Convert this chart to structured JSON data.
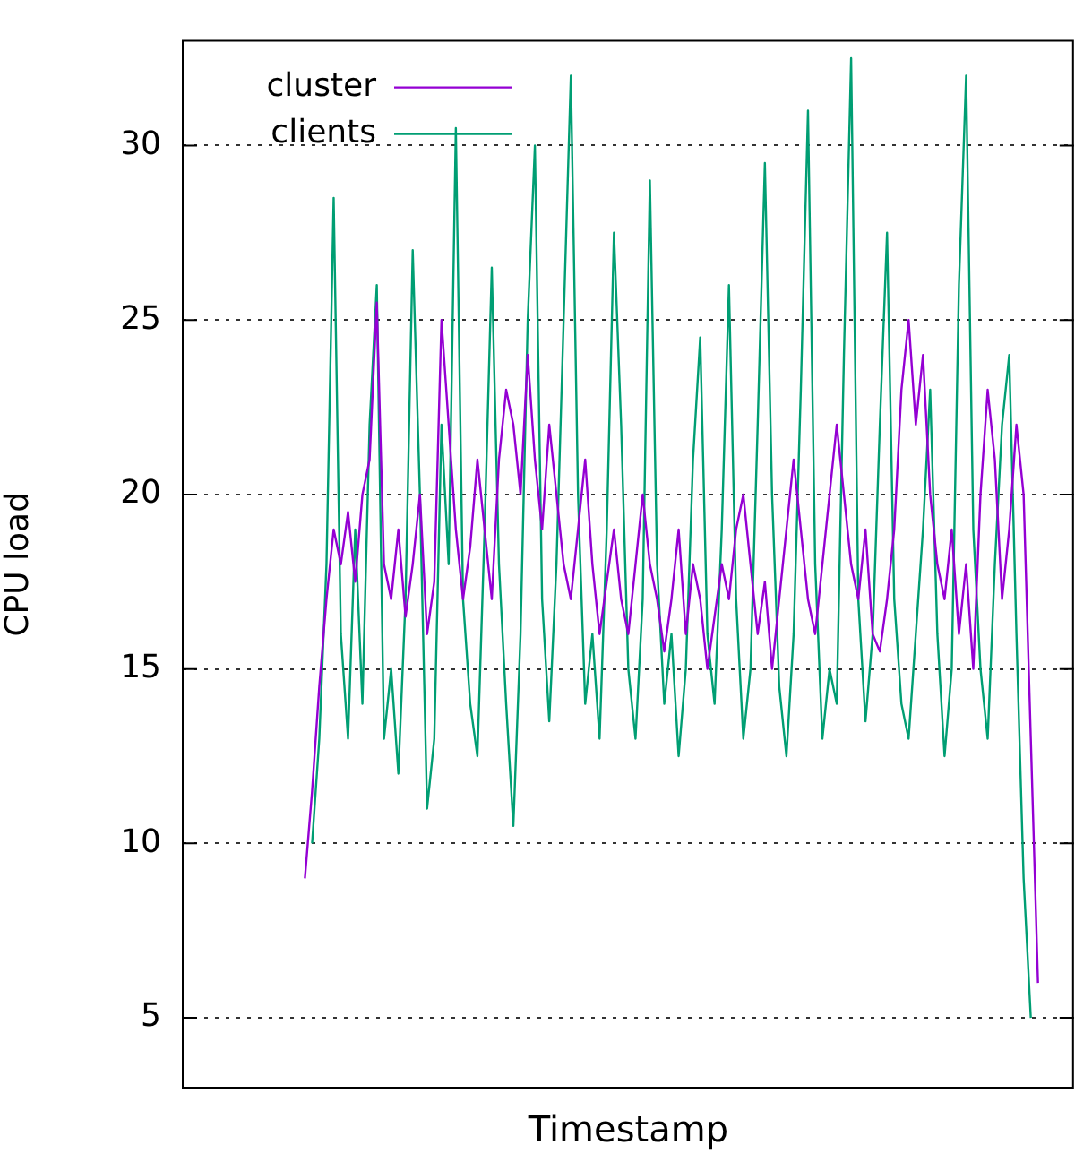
{
  "chart_data": {
    "type": "line",
    "xlabel": "Timestamp",
    "ylabel": "CPU load",
    "categories": [
      null,
      null,
      null,
      null,
      null,
      null,
      null,
      null,
      null,
      null,
      null,
      null,
      null,
      null,
      null,
      null,
      null,
      null,
      null,
      null,
      null,
      null,
      null,
      null,
      null,
      null,
      null,
      null,
      null,
      null,
      null,
      null,
      null,
      null,
      null,
      null,
      null,
      null,
      null,
      null,
      null,
      null,
      null,
      null,
      null,
      null,
      null,
      null,
      null,
      null,
      null,
      null,
      null,
      null,
      null,
      null,
      null,
      null,
      null,
      null,
      null,
      null,
      null,
      null,
      null,
      null,
      null,
      null,
      null,
      null,
      null,
      null,
      null,
      null,
      null,
      null,
      null,
      null,
      null,
      null,
      null,
      null,
      null,
      null,
      null,
      null,
      null,
      null,
      null,
      null,
      null,
      null,
      null,
      null,
      null,
      null,
      null,
      null,
      null,
      null,
      null,
      null,
      null,
      null,
      null,
      null,
      null,
      null,
      null,
      null,
      null,
      null,
      null,
      null,
      null,
      null,
      null,
      null,
      null,
      null,
      null,
      null,
      null,
      null,
      null
    ],
    "series": [
      {
        "name": "cluster",
        "color": "#9400d3",
        "values": [
          null,
          null,
          null,
          null,
          null,
          null,
          null,
          null,
          null,
          null,
          null,
          null,
          null,
          null,
          null,
          null,
          null,
          9,
          11.5,
          14.5,
          17,
          19,
          18,
          19.5,
          17.5,
          20,
          21,
          25.5,
          18,
          17,
          19,
          16.5,
          18,
          20,
          16,
          17.5,
          25,
          22,
          19,
          17,
          18.5,
          21,
          19,
          17,
          21,
          23,
          22,
          20,
          24,
          21,
          19,
          22,
          20,
          18,
          17,
          19,
          21,
          18,
          16,
          17.5,
          19,
          17,
          16,
          18,
          20,
          18,
          17,
          15.5,
          17,
          19,
          16,
          18,
          17,
          15,
          16.5,
          18,
          17,
          19,
          20,
          18,
          16,
          17.5,
          15,
          17,
          19,
          21,
          19,
          17,
          16,
          18,
          20,
          22,
          20,
          18,
          17,
          19,
          16,
          15.5,
          17,
          19,
          23,
          25,
          22,
          24,
          20,
          18,
          17,
          19,
          16,
          18,
          15,
          20,
          23,
          21,
          17,
          19,
          22,
          20,
          13,
          6,
          null,
          null,
          null,
          null,
          null
        ]
      },
      {
        "name": "clients",
        "color": "#009e73",
        "values": [
          null,
          null,
          null,
          null,
          null,
          null,
          null,
          null,
          null,
          null,
          null,
          null,
          null,
          null,
          null,
          null,
          null,
          null,
          10,
          13,
          18,
          28.5,
          16,
          13,
          19,
          14,
          22,
          26,
          13,
          15,
          12,
          17,
          27,
          20,
          11,
          13,
          22,
          18,
          30.5,
          17,
          14,
          12.5,
          19,
          26.5,
          18,
          14,
          10.5,
          16,
          25,
          30,
          17,
          13.5,
          18,
          25,
          32,
          20,
          14,
          16,
          13,
          19,
          27.5,
          22,
          15,
          13,
          17,
          29,
          18,
          14,
          16,
          12.5,
          15,
          21,
          24.5,
          16,
          14,
          19,
          26,
          17,
          13,
          15,
          22,
          29.5,
          20,
          14.5,
          12.5,
          16,
          23,
          31,
          18,
          13,
          15,
          14,
          24,
          32.5,
          17,
          13.5,
          16,
          22,
          27.5,
          17,
          14,
          13,
          16,
          19,
          23,
          16,
          12.5,
          15,
          26,
          32,
          19,
          15,
          13,
          18,
          22,
          24,
          16,
          9,
          5,
          null,
          null,
          null,
          null,
          null,
          null
        ]
      }
    ],
    "ylim": [
      3,
      33
    ],
    "yticks": [
      5,
      10,
      15,
      20,
      25,
      30
    ],
    "tick_labels": "y",
    "grid": "y",
    "legend": "top left",
    "line_style": "solid",
    "marker": "none"
  }
}
